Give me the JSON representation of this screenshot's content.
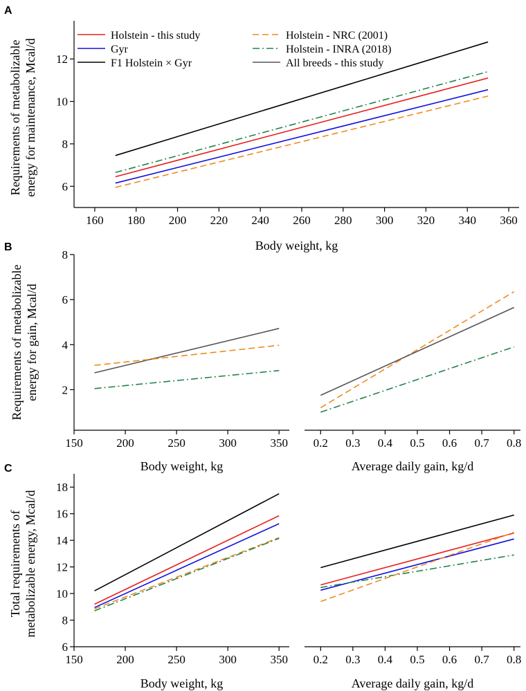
{
  "colors": {
    "holstein_this_study": "#e8201e",
    "gyr": "#1010e0",
    "f1_holstein_gyr": "#000000",
    "holstein_nrc": "#f08a1c",
    "holstein_inra": "#23824a",
    "all_breeds": "#555555"
  },
  "legend": [
    {
      "label": "Holstein - this study",
      "key": "holstein_this_study",
      "dash": "solid"
    },
    {
      "label": "Gyr",
      "key": "gyr",
      "dash": "solid"
    },
    {
      "label": "F1 Holstein × Gyr",
      "key": "f1_holstein_gyr",
      "dash": "solid"
    },
    {
      "label": "Holstein - NRC (2001)",
      "key": "holstein_nrc",
      "dash": "dashed"
    },
    {
      "label": "Holstein - INRA (2018)",
      "key": "holstein_inra",
      "dash": "dashdot"
    },
    {
      "label": "All breeds - this study",
      "key": "all_breeds",
      "dash": "solid"
    }
  ],
  "chart_data": [
    {
      "panel": "A",
      "type": "line",
      "xlabel": "Body weight, kg",
      "ylabel": [
        "Requirements of metabolizable",
        "energy for maintenance, Mcal/d"
      ],
      "xlim": [
        150,
        365
      ],
      "ylim": [
        5,
        13.8
      ],
      "xticks": [
        160,
        180,
        200,
        220,
        240,
        260,
        280,
        300,
        320,
        340,
        360
      ],
      "yticks": [
        6,
        8,
        10,
        12
      ],
      "series": [
        {
          "key": "f1_holstein_gyr",
          "x": [
            170,
            350
          ],
          "y": [
            7.45,
            12.8
          ]
        },
        {
          "key": "holstein_inra",
          "x": [
            170,
            350
          ],
          "y": [
            6.65,
            11.4
          ]
        },
        {
          "key": "holstein_this_study",
          "x": [
            170,
            350
          ],
          "y": [
            6.45,
            11.1
          ]
        },
        {
          "key": "gyr",
          "x": [
            170,
            350
          ],
          "y": [
            6.15,
            10.55
          ]
        },
        {
          "key": "holstein_nrc",
          "x": [
            170,
            350
          ],
          "y": [
            5.95,
            10.25
          ]
        }
      ]
    },
    {
      "panel": "B-left",
      "type": "line",
      "xlabel": "Body weight, kg",
      "ylabel": [
        "Requirements of metabolizable",
        "energy for gain, Mcal/d"
      ],
      "xlim": [
        150,
        360
      ],
      "ylim": [
        0.2,
        8
      ],
      "xticks": [
        150,
        200,
        250,
        300,
        350
      ],
      "yticks": [
        2,
        4,
        6,
        8
      ],
      "series": [
        {
          "key": "all_breeds",
          "x": [
            170,
            350
          ],
          "y": [
            2.75,
            4.72
          ]
        },
        {
          "key": "holstein_nrc",
          "x": [
            170,
            350
          ],
          "y": [
            3.08,
            3.97
          ]
        },
        {
          "key": "holstein_inra",
          "x": [
            170,
            350
          ],
          "y": [
            2.05,
            2.85
          ]
        }
      ]
    },
    {
      "panel": "B-right",
      "type": "line",
      "xlabel": "Average daily gain, kg/d",
      "ylabel": [],
      "xlim": [
        0.15,
        0.82
      ],
      "ylim": [
        0.2,
        8
      ],
      "xticks": [
        0.2,
        0.3,
        0.4,
        0.5,
        0.6,
        0.7,
        0.8
      ],
      "yticks": [],
      "series": [
        {
          "key": "holstein_nrc",
          "x": [
            0.2,
            0.8
          ],
          "y": [
            1.2,
            6.35
          ]
        },
        {
          "key": "all_breeds",
          "x": [
            0.2,
            0.8
          ],
          "y": [
            1.75,
            5.65
          ]
        },
        {
          "key": "holstein_inra",
          "x": [
            0.2,
            0.8
          ],
          "y": [
            1.0,
            3.9
          ]
        }
      ]
    },
    {
      "panel": "C-left",
      "type": "line",
      "xlabel": "Body weight, kg",
      "ylabel": [
        "Total requirements of",
        "metabolizable energy, Mcal/d"
      ],
      "xlim": [
        150,
        360
      ],
      "ylim": [
        6,
        19
      ],
      "xticks": [
        150,
        200,
        250,
        300,
        350
      ],
      "yticks": [
        6,
        8,
        10,
        12,
        14,
        16,
        18
      ],
      "series": [
        {
          "key": "f1_holstein_gyr",
          "x": [
            170,
            350
          ],
          "y": [
            10.2,
            17.5
          ]
        },
        {
          "key": "holstein_this_study",
          "x": [
            170,
            350
          ],
          "y": [
            9.2,
            15.85
          ]
        },
        {
          "key": "gyr",
          "x": [
            170,
            350
          ],
          "y": [
            8.95,
            15.25
          ]
        },
        {
          "key": "holstein_nrc",
          "x": [
            170,
            350
          ],
          "y": [
            8.85,
            14.2
          ]
        },
        {
          "key": "holstein_inra",
          "x": [
            170,
            350
          ],
          "y": [
            8.7,
            14.15
          ]
        }
      ]
    },
    {
      "panel": "C-right",
      "type": "line",
      "xlabel": "Average daily gain, kg/d",
      "ylabel": [],
      "xlim": [
        0.15,
        0.82
      ],
      "ylim": [
        6,
        19
      ],
      "xticks": [
        0.2,
        0.3,
        0.4,
        0.5,
        0.6,
        0.7,
        0.8
      ],
      "yticks": [],
      "series": [
        {
          "key": "f1_holstein_gyr",
          "x": [
            0.2,
            0.8
          ],
          "y": [
            11.95,
            15.9
          ]
        },
        {
          "key": "holstein_this_study",
          "x": [
            0.2,
            0.8
          ],
          "y": [
            10.65,
            14.55
          ]
        },
        {
          "key": "gyr",
          "x": [
            0.2,
            0.8
          ],
          "y": [
            10.25,
            14.1
          ]
        },
        {
          "key": "holstein_inra",
          "x": [
            0.2,
            0.8
          ],
          "y": [
            10.45,
            12.9
          ]
        },
        {
          "key": "holstein_nrc",
          "x": [
            0.2,
            0.8
          ],
          "y": [
            9.4,
            14.6
          ]
        }
      ]
    }
  ],
  "panel_labels": [
    "A",
    "B",
    "C"
  ]
}
